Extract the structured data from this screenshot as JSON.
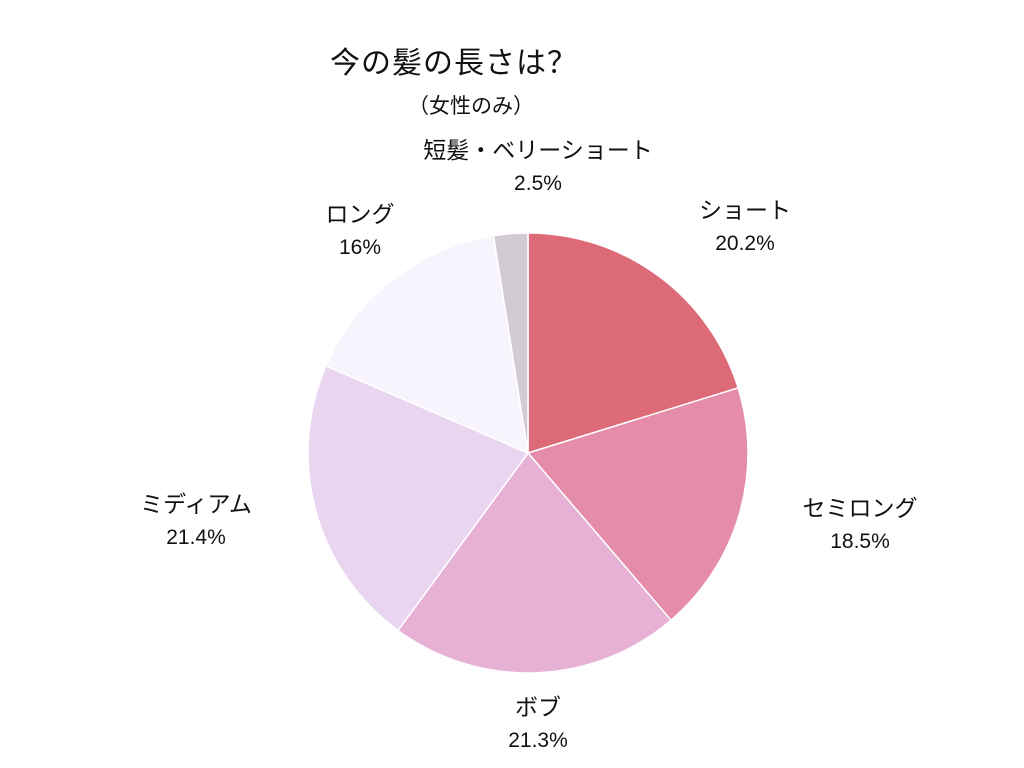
{
  "chart_data": {
    "type": "pie",
    "title": "今の髪の長さは？",
    "subtitle": "（女性のみ）",
    "slices": [
      {
        "label": "ショート",
        "value": 20.2,
        "value_label": "20.2%",
        "color": "#dc6b77"
      },
      {
        "label": "セミロング",
        "value": 18.5,
        "value_label": "18.5%",
        "color": "#e58cab"
      },
      {
        "label": "ボブ",
        "value": 21.3,
        "value_label": "21.3%",
        "color": "#e7b1d6"
      },
      {
        "label": "ミディアム",
        "value": 21.4,
        "value_label": "21.4%",
        "color": "#e9d5f0"
      },
      {
        "label": "ロング",
        "value": 16,
        "value_label": "16%",
        "color": "#f7f4fd"
      },
      {
        "label": "短髪・ベリーショート",
        "value": 2.5,
        "value_label": "2.5%",
        "color": "#d3cbd3"
      }
    ],
    "start_angle": "12 o'clock",
    "direction": "clockwise",
    "legend": "none"
  }
}
